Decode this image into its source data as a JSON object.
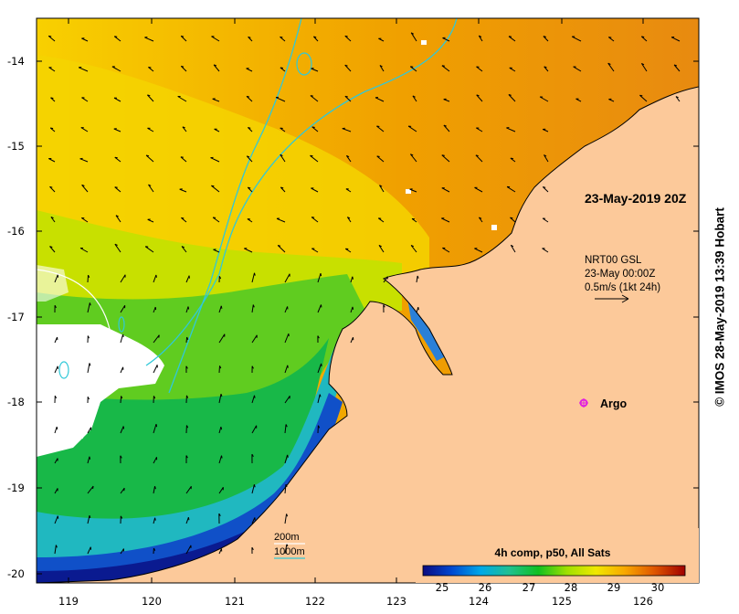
{
  "map": {
    "date_label": "23-May-2019 20Z",
    "current_info": {
      "line1": "NRT00 GSL",
      "line2": "23-May 00:00Z",
      "line3": "0.5m/s (1kt 24h)"
    },
    "argo_label": "Argo",
    "depth_legend": {
      "line1": "200m",
      "line2": "1000m"
    },
    "copyright": "© IMOS 28-May-2019 13:39 Hobart",
    "y_axis_ticks": [
      "-14",
      "-15",
      "-16",
      "-17",
      "-18",
      "-19",
      "-20"
    ],
    "x_axis_ticks": [
      "119",
      "120",
      "121",
      "122",
      "123",
      "124",
      "125",
      "126"
    ],
    "land_color": "#fcc99a",
    "cloud_color": "#ffffff",
    "argo_color": "#e020e0"
  },
  "colorbar": {
    "title": "4h comp, p50, All Sats",
    "tick_labels": [
      "25",
      "26",
      "27",
      "28",
      "29",
      "30"
    ],
    "colors": [
      "#0a0a80",
      "#0050d0",
      "#00a8e8",
      "#20c080",
      "#10c020",
      "#b0e000",
      "#f8e000",
      "#f8a000",
      "#e05000",
      "#a00000"
    ]
  }
}
